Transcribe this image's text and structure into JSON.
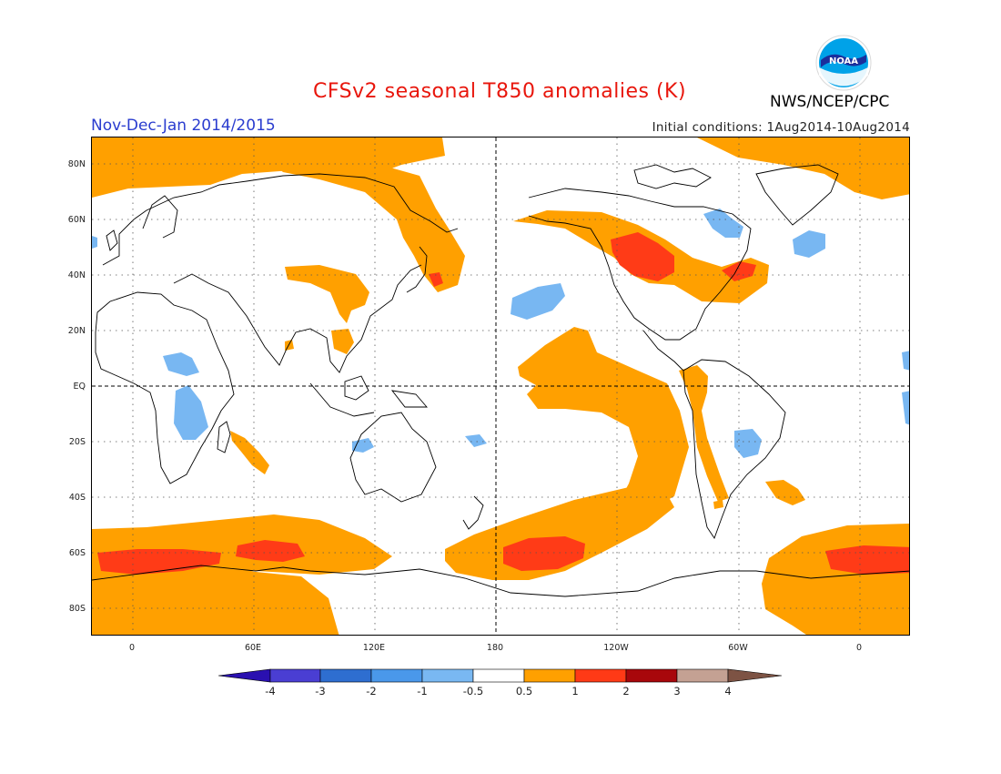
{
  "header": {
    "title": "CFSv2 seasonal T850 anomalies (K)",
    "period": "Nov-Dec-Jan 2014/2015",
    "initial_conditions": "Initial conditions: 1Aug2014-10Aug2014",
    "agency": "NWS/NCEP/CPC",
    "logo_text": "NOAA"
  },
  "map": {
    "lat_labels": [
      "80N",
      "60N",
      "40N",
      "20N",
      "EQ",
      "20S",
      "40S",
      "60S",
      "80S"
    ],
    "lon_labels": [
      "0",
      "60E",
      "120E",
      "180",
      "120W",
      "60W",
      "0"
    ],
    "grid": "dotted",
    "reference_lines": [
      "EQ",
      "180"
    ],
    "colors": {
      "warm_05_1": "#ffa000",
      "warm_1_2": "#ff3b17",
      "cool_05_1": "#78b7f2",
      "coastline": "#000000"
    }
  },
  "colorbar": {
    "labels": [
      "-4",
      "-3",
      "-2",
      "-1",
      "-0.5",
      "0.5",
      "1",
      "2",
      "3",
      "4"
    ],
    "colors": [
      "#2a10b0",
      "#4a3ed3",
      "#2e6ed0",
      "#4a98ea",
      "#79b8f2",
      "#ffffff",
      "#ffa000",
      "#ff3a16",
      "#a8070b",
      "#c4a193",
      "#7d5344"
    ]
  }
}
